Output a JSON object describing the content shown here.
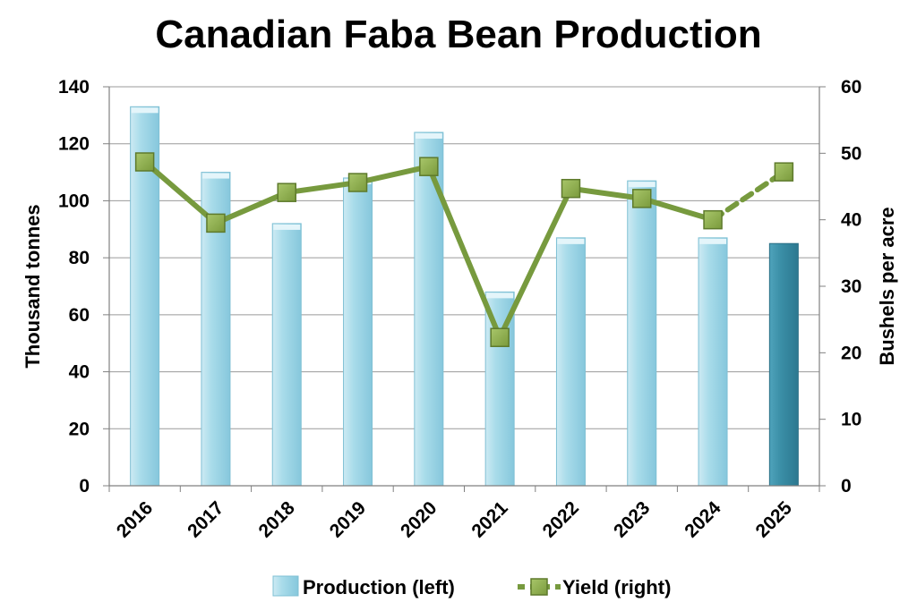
{
  "chart_data": {
    "type": "bar",
    "title": "Canadian Faba Bean Production",
    "categories": [
      "2016",
      "2017",
      "2018",
      "2019",
      "2020",
      "2021",
      "2022",
      "2023",
      "2024",
      "2025"
    ],
    "series": [
      {
        "name": "Production (left)",
        "type": "bar",
        "axis": "left",
        "values": [
          133,
          110,
          92,
          108,
          124,
          68,
          87,
          107,
          87,
          85
        ],
        "color": "#a7dbe9",
        "highlight_color": "#3a8ea6",
        "highlight_index": 9
      },
      {
        "name": "Yield (right)",
        "type": "line",
        "axis": "right",
        "values": [
          48.7,
          39.5,
          44.1,
          45.6,
          48.0,
          22.3,
          44.7,
          43.2,
          40.0,
          47.2
        ],
        "color": "#779a3e",
        "projected_from_index": 8
      }
    ],
    "ylabel": "Thousand tonnes",
    "y2label": "Bushels per acre",
    "ylim": [
      0,
      140
    ],
    "yticks": [
      0,
      20,
      40,
      60,
      80,
      100,
      120,
      140
    ],
    "y2lim": [
      0,
      60
    ],
    "y2ticks": [
      0,
      10,
      20,
      30,
      40,
      50,
      60
    ],
    "grid": true,
    "legend_position": "bottom"
  }
}
